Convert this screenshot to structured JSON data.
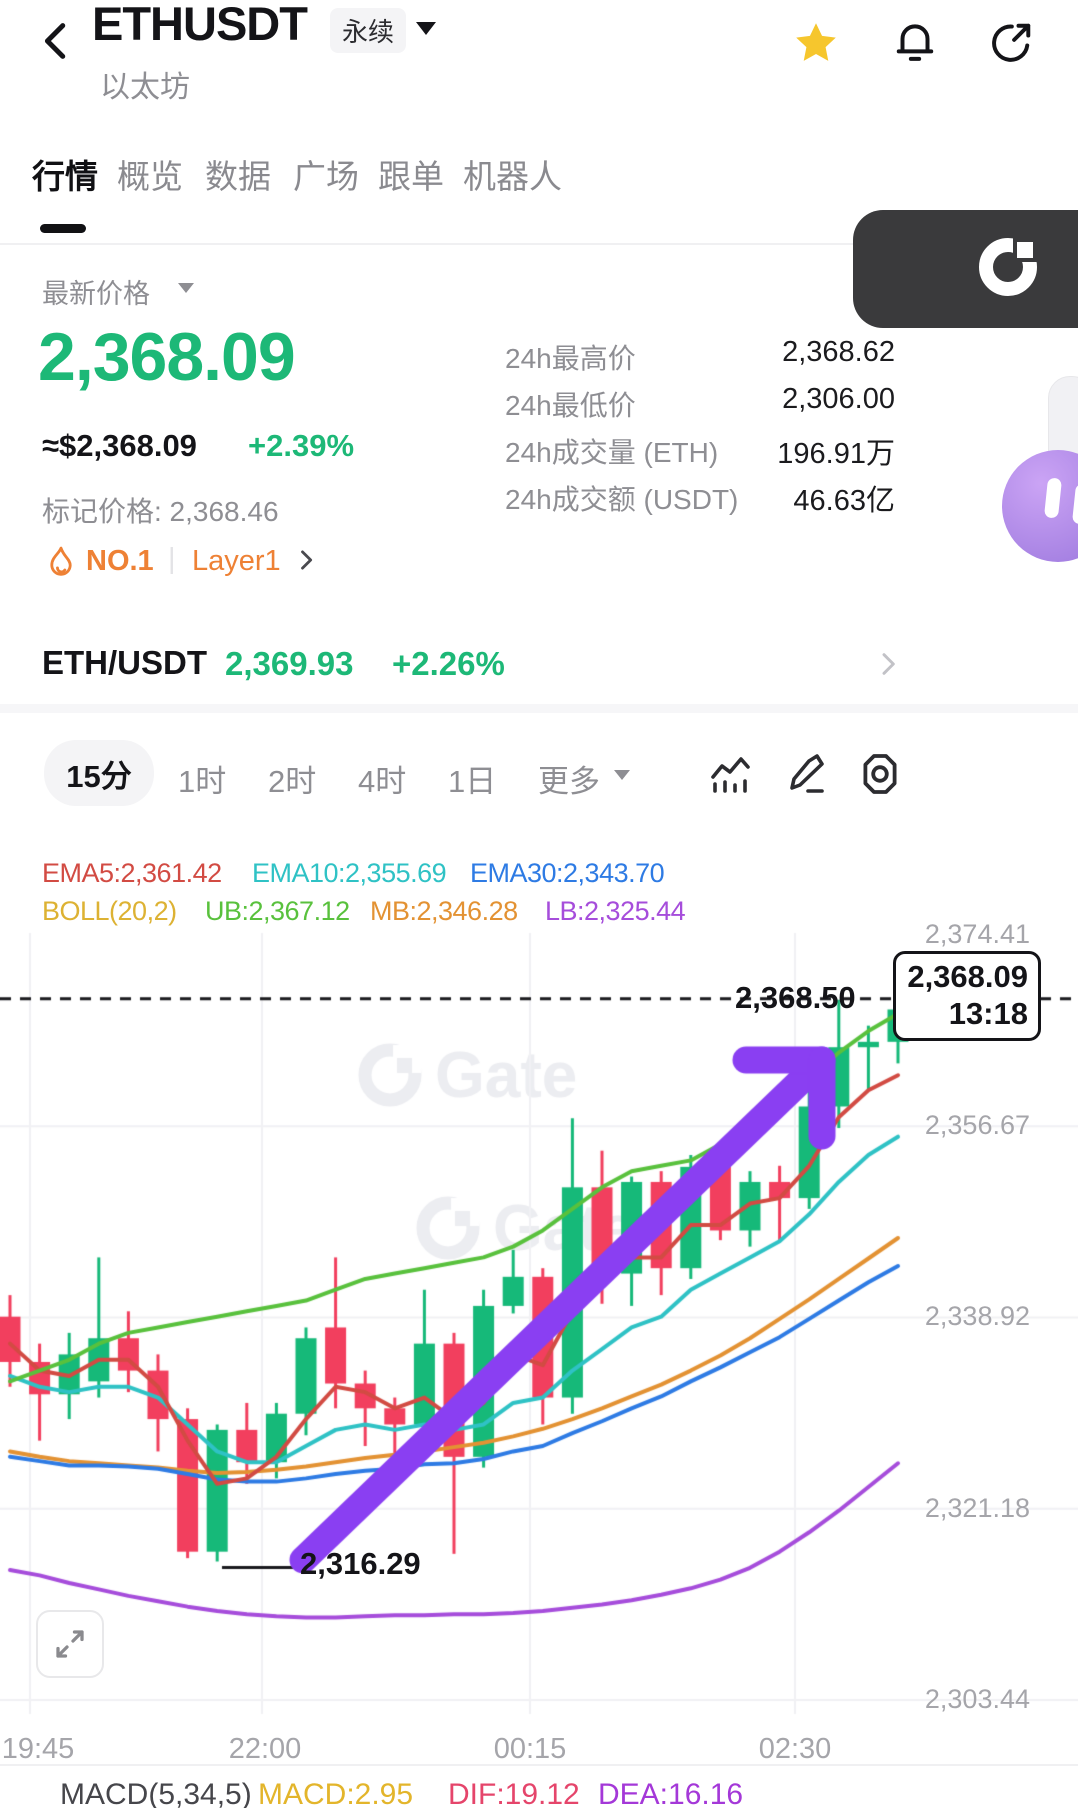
{
  "header": {
    "symbol": "ETHUSDT",
    "contract_badge": "永续",
    "subtitle": "以太坊"
  },
  "tabs": {
    "items": [
      {
        "label": "行情"
      },
      {
        "label": "概览"
      },
      {
        "label": "数据"
      },
      {
        "label": "广场"
      },
      {
        "label": "跟单"
      },
      {
        "label": "机器人"
      }
    ],
    "active": "行情"
  },
  "price_panel": {
    "label": "最新价格",
    "price": "2,368.09",
    "approx_usd": "≈$2,368.09",
    "change": "+2.39%",
    "mark_price": "标记价格: 2,368.46",
    "rank": "NO.1",
    "category": "Layer1",
    "accent_green": "#1db877",
    "accent_orange": "#ee8135"
  },
  "stats": {
    "rows": [
      {
        "label": "24h最高价",
        "value": "2,368.62"
      },
      {
        "label": "24h最低价",
        "value": "2,306.00"
      },
      {
        "label": "24h成交量 (ETH)",
        "value": "196.91万"
      },
      {
        "label": "24h成交额 (USDT)",
        "value": "46.63亿"
      }
    ]
  },
  "pair_row": {
    "pair": "ETH/USDT",
    "price": "2,369.93",
    "change": "+2.26%"
  },
  "toolbar": {
    "active_interval": "15分",
    "intervals": [
      {
        "label": "1时"
      },
      {
        "label": "2时"
      },
      {
        "label": "4时"
      },
      {
        "label": "1日"
      }
    ],
    "more_label": "更多"
  },
  "indicators": {
    "line1": [
      {
        "label": "EMA5:2,361.42",
        "color": "#d24b43"
      },
      {
        "label": "EMA10:2,355.69",
        "color": "#2fc2c5"
      },
      {
        "label": "EMA30:2,343.70",
        "color": "#2e7be4"
      }
    ],
    "line2": [
      {
        "label": "BOLL(20,2)",
        "color": "#ddb233"
      },
      {
        "label": "UB:2,367.12",
        "color": "#59c13d"
      },
      {
        "label": "MB:2,346.28",
        "color": "#e39233"
      },
      {
        "label": "LB:2,325.44",
        "color": "#a64ddb"
      }
    ]
  },
  "chart": {
    "y_labels": [
      "2,374.41",
      "2,356.67",
      "2,338.92",
      "2,321.18",
      "2,303.44"
    ],
    "x_labels": [
      "19:45",
      "22:00",
      "00:15",
      "02:30"
    ],
    "dashed_price_label": "2,368.50",
    "tag_price": "2,368.09",
    "tag_time": "13:18",
    "low_label": "2,316.29",
    "watermark": "Gate"
  },
  "macd": {
    "params": "MACD(5,34,5)",
    "items": [
      {
        "label": "MACD:2.95",
        "color": "#e3b52b"
      },
      {
        "label": "DIF:19.12",
        "color": "#e5456b"
      },
      {
        "label": "DEA:16.16",
        "color": "#a438d8"
      }
    ]
  },
  "chart_data": {
    "type": "candlestick",
    "symbol": "ETHUSDT",
    "interval": "15m",
    "price_axis": {
      "top": 2374.41,
      "bottom": 2303.44,
      "ticks": [
        2374.41,
        2356.67,
        2338.92,
        2321.18,
        2303.44
      ]
    },
    "time_ticks": [
      "19:45",
      "22:00",
      "00:15",
      "02:30"
    ],
    "current_price_line": 2368.5,
    "last_price": 2368.09,
    "last_time": "13:18",
    "low_marker": 2316.29,
    "grid": true,
    "annotation": {
      "shape": "arrow",
      "direction": "up-right",
      "color": "#8a3ff2"
    },
    "colors": {
      "up": "#16b979",
      "down": "#f23f5e",
      "ema5": "#d24b43",
      "ema10": "#2fc2c5",
      "ema30": "#2e7be4",
      "boll_ub": "#59c13d",
      "boll_mb": "#e39233",
      "boll_lb": "#a64ddb"
    },
    "candles": [
      [
        2339.0,
        2341.0,
        2332.5,
        2334.8
      ],
      [
        2334.8,
        2336.5,
        2327.5,
        2331.8
      ],
      [
        2331.8,
        2337.5,
        2329.5,
        2335.5
      ],
      [
        2333.0,
        2344.5,
        2331.5,
        2337.0
      ],
      [
        2337.0,
        2339.5,
        2332.0,
        2334.0
      ],
      [
        2334.0,
        2335.5,
        2326.5,
        2329.5
      ],
      [
        2329.5,
        2330.5,
        2316.6,
        2317.2
      ],
      [
        2317.2,
        2329.0,
        2316.29,
        2328.5
      ],
      [
        2328.5,
        2331.0,
        2323.5,
        2325.5
      ],
      [
        2325.5,
        2331.0,
        2324.0,
        2330.0
      ],
      [
        2330.0,
        2338.0,
        2328.0,
        2337.0
      ],
      [
        2338.0,
        2344.5,
        2330.5,
        2332.8
      ],
      [
        2332.8,
        2334.0,
        2327.0,
        2330.5
      ],
      [
        2330.5,
        2331.5,
        2324.5,
        2329.0
      ],
      [
        2329.0,
        2341.5,
        2326.0,
        2336.5
      ],
      [
        2336.5,
        2337.5,
        2317.0,
        2326.0
      ],
      [
        2326.0,
        2341.5,
        2325.0,
        2340.0
      ],
      [
        2340.0,
        2345.2,
        2339.3,
        2342.7
      ],
      [
        2342.7,
        2343.5,
        2329.0,
        2331.5
      ],
      [
        2331.5,
        2357.4,
        2330.0,
        2351.0
      ],
      [
        2351.0,
        2354.4,
        2340.2,
        2343.0
      ],
      [
        2343.0,
        2352.0,
        2340.0,
        2351.5
      ],
      [
        2351.5,
        2352.5,
        2341.0,
        2343.5
      ],
      [
        2343.5,
        2354.0,
        2342.5,
        2352.9
      ],
      [
        2352.9,
        2354.2,
        2346.1,
        2347.0
      ],
      [
        2347.0,
        2352.5,
        2345.5,
        2351.5
      ],
      [
        2351.5,
        2353.0,
        2346.0,
        2350.0
      ],
      [
        2350.0,
        2360.0,
        2349.0,
        2358.5
      ],
      [
        2358.5,
        2368.4,
        2356.5,
        2364.0
      ],
      [
        2364.0,
        2366.0,
        2360.0,
        2364.5
      ],
      [
        2364.5,
        2368.09,
        2362.5,
        2367.5
      ]
    ],
    "overlays": {
      "ema5": [
        2336.5,
        2334.0,
        2333.5,
        2335.0,
        2335.0,
        2332.5,
        2327.5,
        2323.5,
        2324.0,
        2326.0,
        2329.5,
        2332.5,
        2332.0,
        2330.5,
        2331.5,
        2329.5,
        2331.0,
        2335.5,
        2334.5,
        2339.5,
        2342.0,
        2344.5,
        2344.5,
        2347.5,
        2347.5,
        2349.5,
        2350.0,
        2353.0,
        2357.5,
        2360.0,
        2361.4
      ],
      "ema10": [
        2333.5,
        2332.5,
        2332.0,
        2332.5,
        2332.5,
        2331.5,
        2329.0,
        2326.5,
        2325.5,
        2325.5,
        2327.0,
        2328.5,
        2329.0,
        2328.5,
        2329.0,
        2328.5,
        2329.0,
        2331.0,
        2331.5,
        2334.0,
        2336.0,
        2338.0,
        2339.0,
        2341.5,
        2343.0,
        2344.5,
        2346.0,
        2348.5,
        2351.5,
        2354.0,
        2355.7
      ],
      "ema30": [
        2326.0,
        2325.6,
        2325.2,
        2325.2,
        2325.1,
        2324.9,
        2324.4,
        2323.9,
        2323.7,
        2323.7,
        2324.0,
        2324.4,
        2324.7,
        2324.9,
        2325.3,
        2325.4,
        2325.8,
        2326.5,
        2327.0,
        2328.2,
        2329.3,
        2330.5,
        2331.6,
        2333.0,
        2334.3,
        2335.7,
        2337.1,
        2338.8,
        2340.5,
        2342.2,
        2343.7
      ],
      "boll_ub": [
        2333.0,
        2334.0,
        2335.0,
        2336.5,
        2337.5,
        2338.0,
        2338.5,
        2339.0,
        2339.5,
        2340.0,
        2340.5,
        2341.5,
        2342.5,
        2343.0,
        2343.5,
        2344.0,
        2344.5,
        2345.5,
        2347.0,
        2349.0,
        2351.0,
        2352.5,
        2353.0,
        2353.5,
        2355.0,
        2357.0,
        2359.0,
        2361.0,
        2363.5,
        2365.5,
        2367.1
      ],
      "boll_mb": [
        2326.5,
        2326.0,
        2325.6,
        2325.4,
        2325.2,
        2325.0,
        2324.7,
        2324.5,
        2324.6,
        2324.8,
        2325.1,
        2325.5,
        2325.9,
        2326.2,
        2326.5,
        2326.9,
        2327.3,
        2327.9,
        2328.6,
        2329.5,
        2330.5,
        2331.6,
        2332.7,
        2334.0,
        2335.4,
        2337.0,
        2338.8,
        2340.6,
        2342.5,
        2344.4,
        2346.3
      ],
      "boll_lb": [
        2315.5,
        2315.0,
        2314.3,
        2313.7,
        2313.1,
        2312.6,
        2312.1,
        2311.7,
        2311.4,
        2311.2,
        2311.1,
        2311.1,
        2311.2,
        2311.3,
        2311.3,
        2311.4,
        2311.4,
        2311.5,
        2311.7,
        2312.0,
        2312.3,
        2312.7,
        2313.2,
        2313.8,
        2314.6,
        2315.7,
        2317.2,
        2319.0,
        2321.0,
        2323.2,
        2325.4
      ]
    }
  }
}
